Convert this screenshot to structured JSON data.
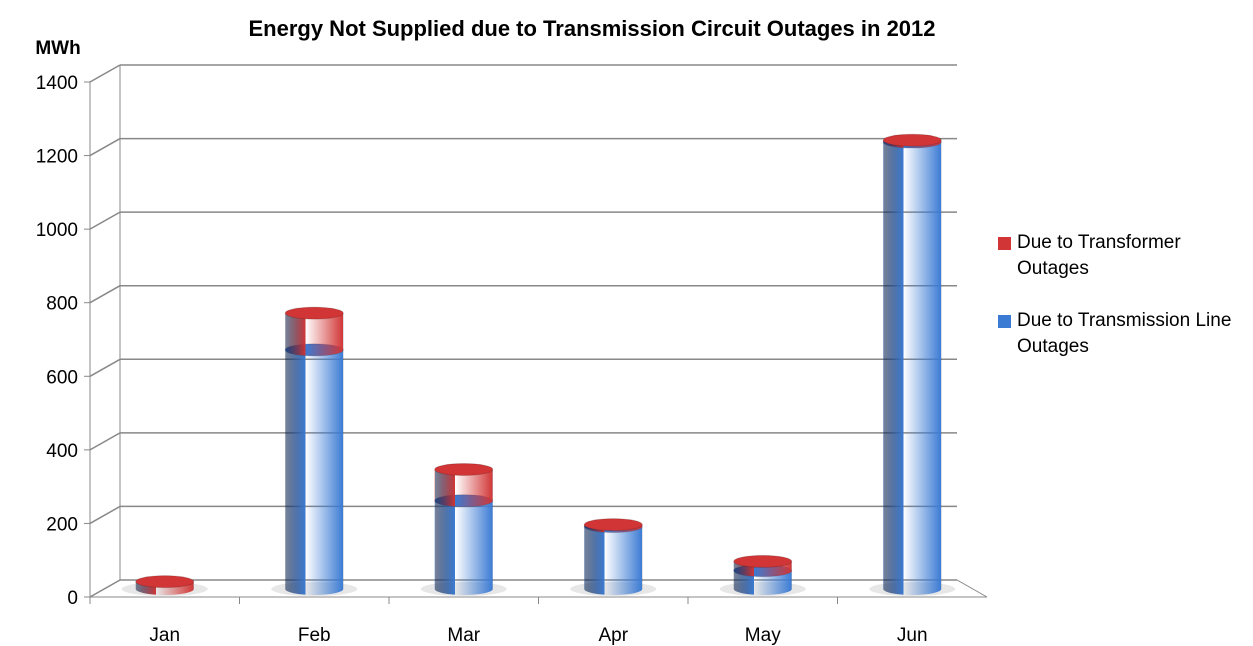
{
  "chart_data": {
    "type": "bar",
    "stacked": true,
    "title": "Energy Not Supplied due to Transmission Circuit Outages in 2012",
    "y_label": "MWh",
    "categories": [
      "Jan",
      "Feb",
      "Mar",
      "Apr",
      "May",
      "Jun"
    ],
    "series": [
      {
        "name": "Due to Transmission Line Outages",
        "color": "#3b7bd4",
        "values": [
          0,
          650,
          240,
          170,
          50,
          1215
        ]
      },
      {
        "name": "Due to Transformer Outages",
        "color": "#d13535",
        "values": [
          20,
          100,
          85,
          5,
          25,
          5
        ]
      }
    ],
    "legend_order": [
      1,
      0
    ],
    "ylim": [
      0,
      1400
    ],
    "yticks": [
      0,
      200,
      400,
      600,
      800,
      1000,
      1200,
      1400
    ],
    "grid": true
  }
}
